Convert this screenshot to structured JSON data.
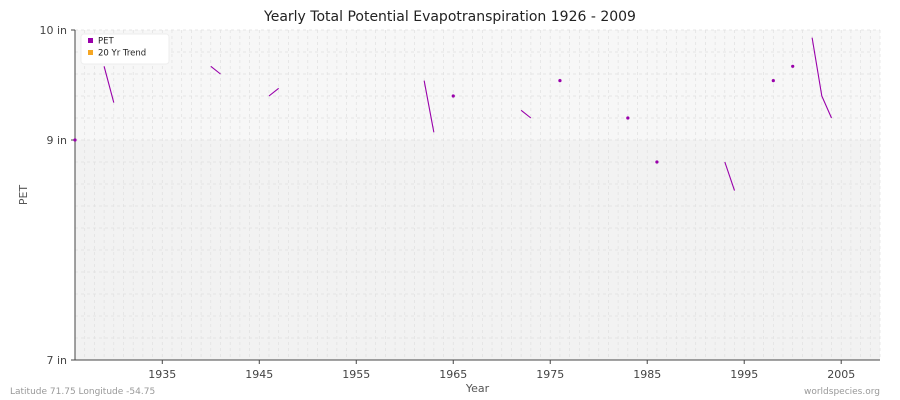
{
  "chart_data": {
    "type": "line",
    "title": "Yearly Total Potential Evapotranspiration 1926 - 2009",
    "xlabel": "Year",
    "ylabel": "PET",
    "xlim": [
      1926,
      2009
    ],
    "ylim": [
      7,
      10
    ],
    "x_ticks": [
      1935,
      1945,
      1955,
      1965,
      1975,
      1985,
      1995,
      2005
    ],
    "y_ticks": [
      {
        "value": 7,
        "label": "7 in"
      },
      {
        "value": 9,
        "label": "9 in"
      },
      {
        "value": 10,
        "label": "10 in"
      }
    ],
    "grid": true,
    "legend": {
      "position": "top-left",
      "entries": [
        {
          "name": "PET",
          "color": "#9900aa"
        },
        {
          "name": "20 Yr Trend",
          "color": "#f5a623"
        }
      ]
    },
    "series": [
      {
        "name": "PET",
        "color": "#9900aa",
        "points": [
          [
            1926,
            9.0
          ],
          [
            1929,
            9.67
          ],
          [
            1930,
            9.34
          ],
          [
            1940,
            9.67
          ],
          [
            1941,
            9.6
          ],
          [
            1946,
            9.4
          ],
          [
            1947,
            9.47
          ],
          [
            1962,
            9.54
          ],
          [
            1963,
            9.07
          ],
          [
            1965,
            9.4
          ],
          [
            1972,
            9.27
          ],
          [
            1973,
            9.2
          ],
          [
            1976,
            9.54
          ],
          [
            1983,
            9.2
          ],
          [
            1986,
            8.8
          ],
          [
            1993,
            8.8
          ],
          [
            1994,
            8.54
          ],
          [
            1998,
            9.54
          ],
          [
            2000,
            9.67
          ],
          [
            2002,
            9.93
          ],
          [
            2003,
            9.4
          ],
          [
            2004,
            9.2
          ]
        ],
        "segments": [
          [
            [
              1929,
              9.67
            ],
            [
              1930,
              9.34
            ]
          ],
          [
            [
              1940,
              9.67
            ],
            [
              1941,
              9.6
            ]
          ],
          [
            [
              1946,
              9.4
            ],
            [
              1947,
              9.47
            ]
          ],
          [
            [
              1962,
              9.54
            ],
            [
              1963,
              9.07
            ]
          ],
          [
            [
              1972,
              9.27
            ],
            [
              1973,
              9.2
            ]
          ],
          [
            [
              1993,
              8.8
            ],
            [
              1994,
              8.54
            ]
          ],
          [
            [
              2002,
              9.93
            ],
            [
              2003,
              9.4
            ],
            [
              2004,
              9.2
            ]
          ]
        ],
        "isolated": [
          [
            1926,
            9.0
          ],
          [
            1965,
            9.4
          ],
          [
            1976,
            9.54
          ],
          [
            1983,
            9.2
          ],
          [
            1986,
            8.8
          ],
          [
            1998,
            9.54
          ],
          [
            2000,
            9.67
          ]
        ]
      }
    ]
  },
  "footer": {
    "left": "Latitude 71.75 Longitude -54.75",
    "right": "worldspecies.org"
  },
  "colors": {
    "band_upper": "#f7f7f7",
    "band_lower": "#f2f2f2",
    "grid": "#e0e0e0",
    "axis": "#444444"
  }
}
